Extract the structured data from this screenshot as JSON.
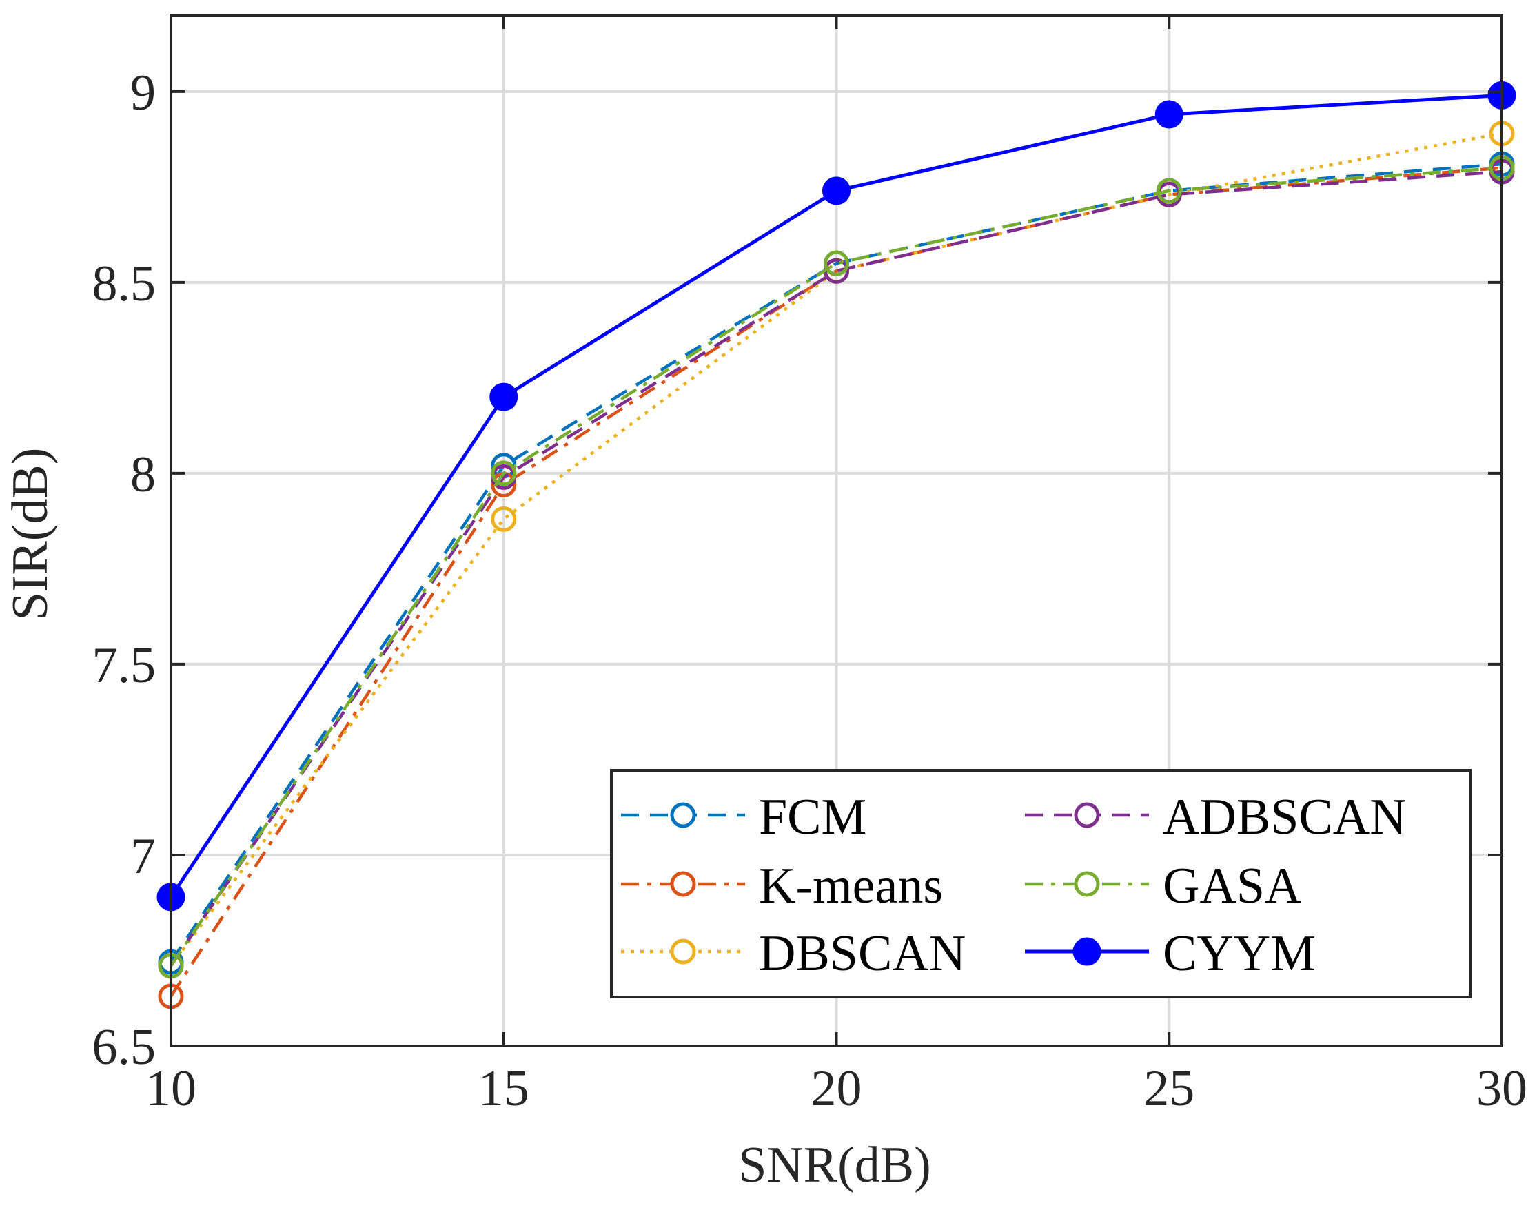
{
  "chart_data": {
    "type": "line",
    "title": "",
    "xlabel": "SNR(dB)",
    "ylabel": "SIR(dB)",
    "xlim": [
      10,
      30
    ],
    "ylim": [
      6.5,
      9.2
    ],
    "grid": true,
    "legend_position": "bottom-right",
    "legend_columns": 2,
    "x": [
      10,
      15,
      20,
      25,
      30
    ],
    "x_tick_labels": [
      "10",
      "15",
      "20",
      "25",
      "30"
    ],
    "y_ticks": [
      6.5,
      7,
      7.5,
      8,
      8.5,
      9
    ],
    "y_tick_labels": [
      "6.5",
      "7",
      "7.5",
      "8",
      "8.5",
      "9"
    ],
    "series": [
      {
        "name": "FCM",
        "values": [
          6.72,
          8.02,
          8.55,
          8.74,
          8.81
        ],
        "color": "#0072BD",
        "line_style": "dashed",
        "marker": "open-circle"
      },
      {
        "name": "K-means",
        "values": [
          6.63,
          7.97,
          8.53,
          8.73,
          8.8
        ],
        "color": "#D95319",
        "line_style": "dashdot",
        "marker": "open-circle"
      },
      {
        "name": "DBSCAN",
        "values": [
          6.71,
          7.88,
          8.53,
          8.73,
          8.89
        ],
        "color": "#EDB120",
        "line_style": "dotted",
        "marker": "open-circle"
      },
      {
        "name": "ADBSCAN",
        "values": [
          6.71,
          7.99,
          8.53,
          8.73,
          8.79
        ],
        "color": "#7E2F8E",
        "line_style": "dashed",
        "marker": "open-circle"
      },
      {
        "name": "GASA",
        "values": [
          6.71,
          8.0,
          8.55,
          8.74,
          8.8
        ],
        "color": "#77AC30",
        "line_style": "dashdot",
        "marker": "open-circle"
      },
      {
        "name": "CYYM",
        "values": [
          6.89,
          8.2,
          8.74,
          8.94,
          8.99
        ],
        "color": "#0000FF",
        "line_style": "solid",
        "marker": "filled-circle"
      }
    ]
  }
}
